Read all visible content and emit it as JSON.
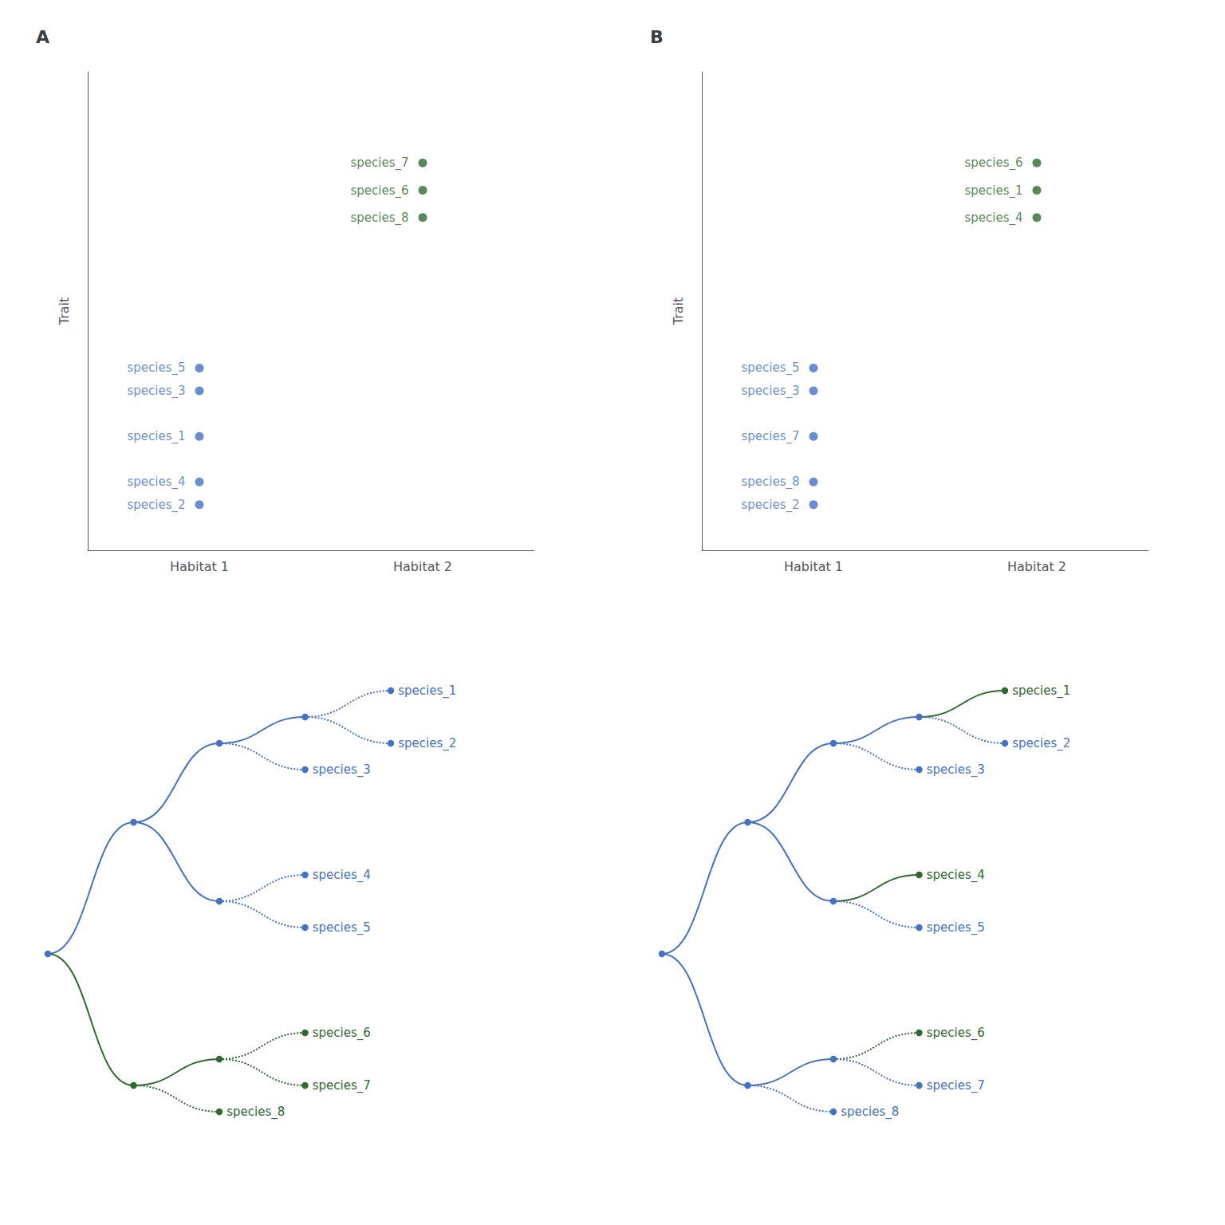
{
  "chart_data": [
    {
      "type": "scatter",
      "title": "A",
      "ylabel": "Trait",
      "categories": [
        "Habitat 1",
        "Habitat 2"
      ],
      "ylim": [
        0.5,
        11
      ],
      "yticks": [],
      "tick_labels": "x",
      "grid": false,
      "series": [
        {
          "color": "#2D6A2D",
          "x": [
            "Habitat 2",
            "Habitat 2",
            "Habitat 2"
          ],
          "values": [
            9.0,
            8.4,
            7.8
          ],
          "labels": [
            "species_7",
            "species_6",
            "species_8"
          ]
        },
        {
          "color": "#4472C4",
          "x": [
            "Habitat 1",
            "Habitat 1",
            "Habitat 1",
            "Habitat 1",
            "Habitat 1"
          ],
          "values": [
            4.5,
            4.0,
            3.0,
            2.0,
            1.5
          ],
          "labels": [
            "species_5",
            "species_3",
            "species_1",
            "species_4",
            "species_2"
          ]
        }
      ]
    },
    {
      "type": "scatter",
      "title": "B",
      "ylabel": "Trait",
      "categories": [
        "Habitat 1",
        "Habitat 2"
      ],
      "ylim": [
        0.5,
        11
      ],
      "yticks": [],
      "tick_labels": "x",
      "grid": false,
      "series": [
        {
          "color": "#2D6A2D",
          "x": [
            "Habitat 2",
            "Habitat 2",
            "Habitat 2"
          ],
          "values": [
            9.0,
            8.4,
            7.8
          ],
          "labels": [
            "species_6",
            "species_1",
            "species_4"
          ]
        },
        {
          "color": "#4472C4",
          "x": [
            "Habitat 1",
            "Habitat 1",
            "Habitat 1",
            "Habitat 1",
            "Habitat 1"
          ],
          "values": [
            4.5,
            4.0,
            3.0,
            2.0,
            1.5
          ],
          "labels": [
            "species_5",
            "species_3",
            "species_7",
            "species_8",
            "species_2"
          ]
        }
      ]
    },
    {
      "type": "tree",
      "tree": {
        "color": "#4472C4",
        "line_style": "solid",
        "children": [
          {
            "color": "#4472C4",
            "line_style": "solid",
            "children": [
              {
                "color": "#4472C4",
                "line_style": "solid",
                "children": [
                  {
                    "color": "#4472C4",
                    "line_style": "solid",
                    "children": [
                      {
                        "name": "species_1",
                        "color": "#4472C4",
                        "line_style": "dotted"
                      },
                      {
                        "name": "species_2",
                        "color": "#4472C4",
                        "line_style": "dotted"
                      }
                    ]
                  },
                  {
                    "name": "species_3",
                    "color": "#4472C4",
                    "line_style": "dotted"
                  }
                ]
              },
              {
                "color": "#4472C4",
                "line_style": "solid",
                "children": [
                  {
                    "name": "species_4",
                    "color": "#4472C4",
                    "line_style": "dotted"
                  },
                  {
                    "name": "species_5",
                    "color": "#4472C4",
                    "line_style": "dotted"
                  }
                ]
              }
            ]
          },
          {
            "color": "#2D6A2D",
            "line_style": "solid",
            "children": [
              {
                "color": "#2D6A2D",
                "line_style": "solid",
                "children": [
                  {
                    "name": "species_6",
                    "color": "#2D6A2D",
                    "line_style": "dotted"
                  },
                  {
                    "name": "species_7",
                    "color": "#2D6A2D",
                    "line_style": "dotted"
                  }
                ]
              },
              {
                "name": "species_8",
                "color": "#2D6A2D",
                "line_style": "dotted"
              }
            ]
          }
        ]
      }
    },
    {
      "type": "tree",
      "tree": {
        "color": "#4472C4",
        "line_style": "solid",
        "children": [
          {
            "color": "#4472C4",
            "line_style": "solid",
            "children": [
              {
                "color": "#4472C4",
                "line_style": "solid",
                "children": [
                  {
                    "color": "#4472C4",
                    "line_style": "solid",
                    "children": [
                      {
                        "name": "species_1",
                        "color": "#2D6A2D",
                        "line_style": "solid"
                      },
                      {
                        "name": "species_2",
                        "color": "#4472C4",
                        "line_style": "dotted"
                      }
                    ]
                  },
                  {
                    "name": "species_3",
                    "color": "#4472C4",
                    "line_style": "dotted"
                  }
                ]
              },
              {
                "color": "#4472C4",
                "line_style": "solid",
                "children": [
                  {
                    "name": "species_4",
                    "color": "#2D6A2D",
                    "line_style": "solid"
                  },
                  {
                    "name": "species_5",
                    "color": "#4472C4",
                    "line_style": "dotted"
                  }
                ]
              }
            ]
          },
          {
            "color": "#4472C4",
            "line_style": "solid",
            "children": [
              {
                "color": "#4472C4",
                "line_style": "solid",
                "children": [
                  {
                    "name": "species_6",
                    "color": "#2D6A2D",
                    "line_style": "dotted"
                  },
                  {
                    "name": "species_7",
                    "color": "#4472C4",
                    "line_style": "dotted"
                  }
                ]
              },
              {
                "name": "species_8",
                "color": "#4472C4",
                "line_style": "dotted"
              }
            ]
          }
        ]
      }
    }
  ]
}
